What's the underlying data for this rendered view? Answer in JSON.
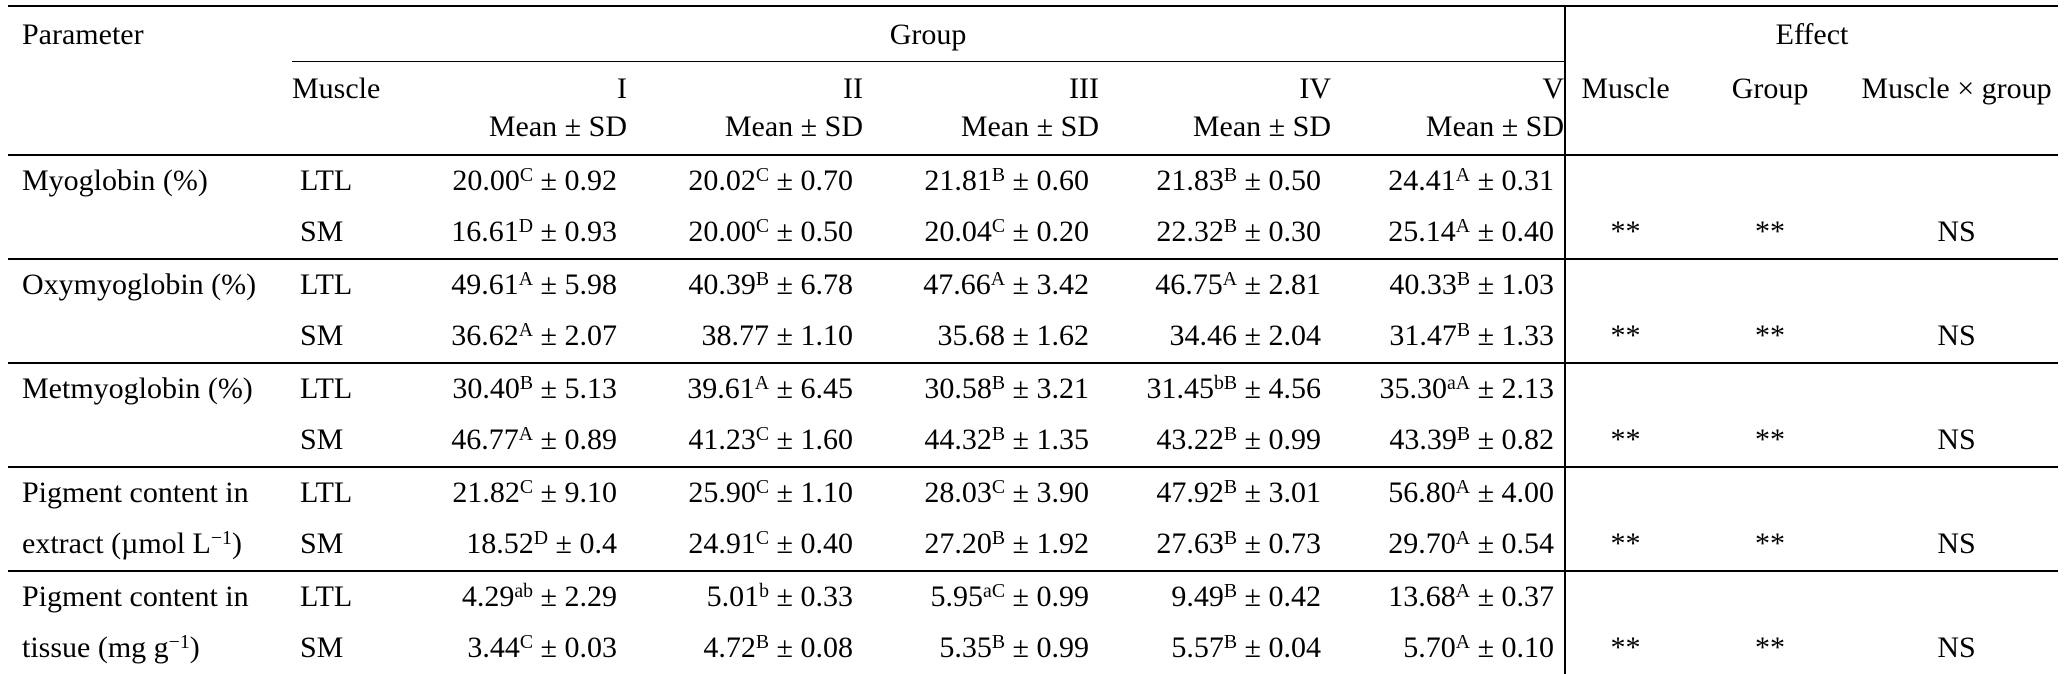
{
  "symbols": {
    "pm_sep": " ± "
  },
  "header": {
    "parameter": "Parameter",
    "group": "Group",
    "effect": "Effect",
    "muscle": "Muscle",
    "mean_sd": "Mean ± SD",
    "groups": [
      "I",
      "II",
      "III",
      "IV",
      "V"
    ],
    "effect_cols": [
      "Muscle",
      "Group",
      "Muscle × group"
    ]
  },
  "sections": [
    {
      "parameter": [
        [
          {
            "t": "Myoglobin (%)"
          }
        ]
      ],
      "rows": [
        {
          "muscle": "LTL",
          "values": [
            {
              "m": "20.00",
              "s": "C",
              "d": "0.92"
            },
            {
              "m": "20.02",
              "s": "C",
              "d": "0.70"
            },
            {
              "m": "21.81",
              "s": "B",
              "d": "0.60"
            },
            {
              "m": "21.83",
              "s": "B",
              "d": "0.50"
            },
            {
              "m": "24.41",
              "s": "A",
              "d": "0.31"
            }
          ]
        },
        {
          "muscle": "SM",
          "values": [
            {
              "m": "16.61",
              "s": "D",
              "d": "0.93"
            },
            {
              "m": "20.00",
              "s": "C",
              "d": "0.50"
            },
            {
              "m": "20.04",
              "s": "C",
              "d": "0.20"
            },
            {
              "m": "22.32",
              "s": "B",
              "d": "0.30"
            },
            {
              "m": "25.14",
              "s": "A",
              "d": "0.40"
            }
          ]
        }
      ],
      "effects": [
        "**",
        "**",
        "NS"
      ]
    },
    {
      "parameter": [
        [
          {
            "t": "Oxymyoglobin (%)"
          }
        ]
      ],
      "rows": [
        {
          "muscle": "LTL",
          "values": [
            {
              "m": "49.61",
              "s": "A",
              "d": "5.98"
            },
            {
              "m": "40.39",
              "s": "B",
              "d": "6.78"
            },
            {
              "m": "47.66",
              "s": "A",
              "d": "3.42"
            },
            {
              "m": "46.75",
              "s": "A",
              "d": "2.81"
            },
            {
              "m": "40.33",
              "s": "B",
              "d": "1.03"
            }
          ]
        },
        {
          "muscle": "SM",
          "values": [
            {
              "m": "36.62",
              "s": "A",
              "d": "2.07"
            },
            {
              "m": "38.77",
              "s": "",
              "d": "1.10"
            },
            {
              "m": "35.68",
              "s": "",
              "d": "1.62"
            },
            {
              "m": "34.46",
              "s": "",
              "d": "2.04"
            },
            {
              "m": "31.47",
              "s": "B",
              "d": "1.33"
            }
          ]
        }
      ],
      "effects": [
        "**",
        "**",
        "NS"
      ]
    },
    {
      "parameter": [
        [
          {
            "t": "Metmyoglobin (%)"
          }
        ]
      ],
      "rows": [
        {
          "muscle": "LTL",
          "values": [
            {
              "m": "30.40",
              "s": "B",
              "d": "5.13"
            },
            {
              "m": "39.61",
              "s": "A",
              "d": "6.45"
            },
            {
              "m": "30.58",
              "s": "B",
              "d": "3.21"
            },
            {
              "m": "31.45",
              "s": "bB",
              "d": "4.56"
            },
            {
              "m": "35.30",
              "s": "aA",
              "d": "2.13"
            }
          ]
        },
        {
          "muscle": "SM",
          "values": [
            {
              "m": "46.77",
              "s": "A",
              "d": "0.89"
            },
            {
              "m": "41.23",
              "s": "C",
              "d": "1.60"
            },
            {
              "m": "44.32",
              "s": "B",
              "d": "1.35"
            },
            {
              "m": "43.22",
              "s": "B",
              "d": "0.99"
            },
            {
              "m": "43.39",
              "s": "B",
              "d": "0.82"
            }
          ]
        }
      ],
      "effects": [
        "**",
        "**",
        "NS"
      ]
    },
    {
      "parameter": [
        [
          {
            "t": "Pigment content in"
          }
        ],
        [
          {
            "t": "extract (µmol L"
          },
          {
            "sup": "−1"
          },
          {
            "t": ")"
          }
        ]
      ],
      "rows": [
        {
          "muscle": "LTL",
          "values": [
            {
              "m": "21.82",
              "s": "C",
              "d": "9.10"
            },
            {
              "m": "25.90",
              "s": "C",
              "d": "1.10"
            },
            {
              "m": "28.03",
              "s": "C",
              "d": "3.90"
            },
            {
              "m": "47.92",
              "s": "B",
              "d": "3.01"
            },
            {
              "m": "56.80",
              "s": "A",
              "d": "4.00"
            }
          ]
        },
        {
          "muscle": "SM",
          "values": [
            {
              "m": "18.52",
              "s": "D",
              "d": "0.4"
            },
            {
              "m": "24.91",
              "s": "C",
              "d": "0.40"
            },
            {
              "m": "27.20",
              "s": "B",
              "d": "1.92"
            },
            {
              "m": "27.63",
              "s": "B",
              "d": "0.73"
            },
            {
              "m": "29.70",
              "s": "A",
              "d": "0.54"
            }
          ]
        }
      ],
      "effects": [
        "**",
        "**",
        "NS"
      ]
    },
    {
      "parameter": [
        [
          {
            "t": "Pigment content in"
          }
        ],
        [
          {
            "t": "tissue (mg g"
          },
          {
            "sup": "−1"
          },
          {
            "t": ")"
          }
        ]
      ],
      "rows": [
        {
          "muscle": "LTL",
          "values": [
            {
              "m": "4.29",
              "s": "ab",
              "d": "2.29"
            },
            {
              "m": "5.01",
              "s": "b",
              "d": "0.33"
            },
            {
              "m": "5.95",
              "s": "aC",
              "d": "0.99"
            },
            {
              "m": "9.49",
              "s": "B",
              "d": "0.42"
            },
            {
              "m": "13.68",
              "s": "A",
              "d": "0.37"
            }
          ]
        },
        {
          "muscle": "SM",
          "values": [
            {
              "m": "3.44",
              "s": "C",
              "d": "0.03"
            },
            {
              "m": "4.72",
              "s": "B",
              "d": "0.08"
            },
            {
              "m": "5.35",
              "s": "B",
              "d": "0.99"
            },
            {
              "m": "5.57",
              "s": "B",
              "d": "0.04"
            },
            {
              "m": "5.70",
              "s": "A",
              "d": "0.10"
            }
          ]
        }
      ],
      "effects": [
        "**",
        "**",
        "NS"
      ]
    }
  ]
}
